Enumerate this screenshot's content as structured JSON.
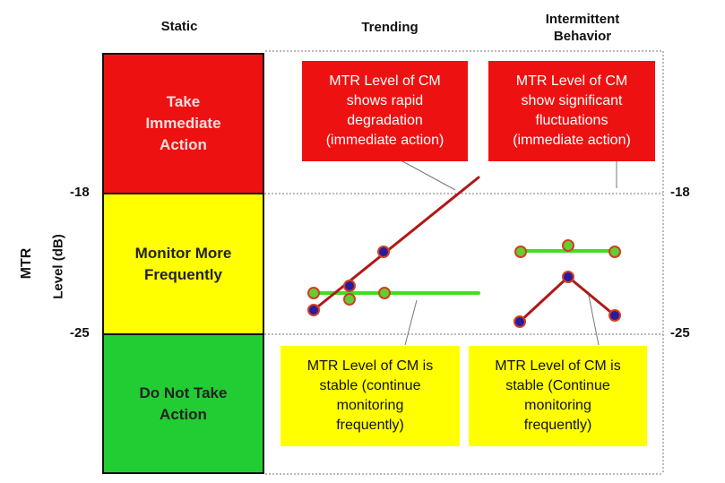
{
  "headers": {
    "static": "Static",
    "trending": "Trending",
    "intermittent": "Intermittent\nBehavior"
  },
  "y_axis": {
    "label_line1": "MTR",
    "label_line2": "Level (dB)",
    "tick_high": "-18",
    "tick_low": "-25"
  },
  "zones": {
    "red": {
      "label": "Take\nImmediate\nAction",
      "color": "#ee1111",
      "text_color": "#f3dede"
    },
    "yellow": {
      "label": "Monitor More\nFrequently",
      "color": "#ffff00",
      "text_color": "#222222"
    },
    "green": {
      "label": "Do Not Take\nAction",
      "color": "#22cc33",
      "text_color": "#222222"
    }
  },
  "callouts": {
    "trend_red": "MTR Level of CM\nshows rapid\ndegradation\n(immediate action)",
    "inter_red": "MTR Level of CM\nshow significant\nfluctuations\n(immediate action)",
    "trend_yellow": "MTR Level of CM is\nstable (continue\nmonitoring\nfrequently)",
    "inter_yellow": "MTR Level of CM is\nstable (Continue\nmonitoring\nfrequently)"
  },
  "colors": {
    "degrading_line": "#b01818",
    "stable_line": "#44dd22",
    "marker_blue": "#2a1aa0",
    "marker_green": "#66cc33",
    "marker_ring": "#d04020"
  }
}
